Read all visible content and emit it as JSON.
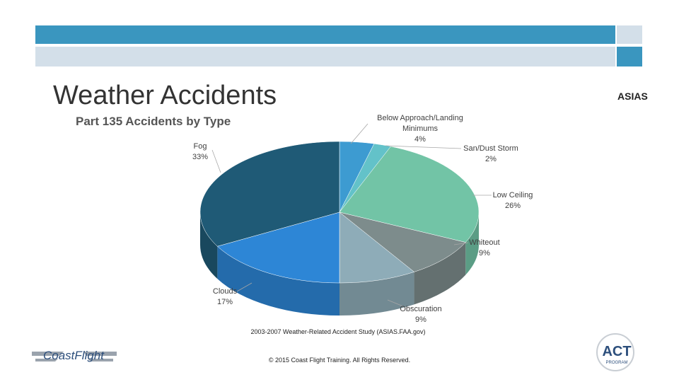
{
  "slide": {
    "title": "Weather Accidents",
    "corner_label": "ASIAS",
    "source": "2003-2007 Weather-Related Accident Study (ASIAS.FAA.gov)",
    "copyright": "© 2015 Coast Flight Training. All Rights Reserved.",
    "logo_left": "CoastFlight",
    "logo_right": "ACT",
    "logo_right_sub": "PROGRAM"
  },
  "chart_data": {
    "type": "pie",
    "title": "Part 135 Accidents by Type",
    "categories": [
      "Below Approach/Landing Minimums",
      "San/Dust Storm",
      "Low Ceiling",
      "Whiteout",
      "Obscuration",
      "Clouds",
      "Fog"
    ],
    "values": [
      4,
      2,
      26,
      9,
      9,
      17,
      33
    ],
    "value_labels": [
      "4%",
      "2%",
      "26%",
      "9%",
      "9%",
      "17%",
      "33%"
    ],
    "colors": [
      "#3d9bd1",
      "#63c2c9",
      "#72c4a6",
      "#7d8c8c",
      "#8eacb8",
      "#2d86d6",
      "#1f5a76"
    ]
  }
}
